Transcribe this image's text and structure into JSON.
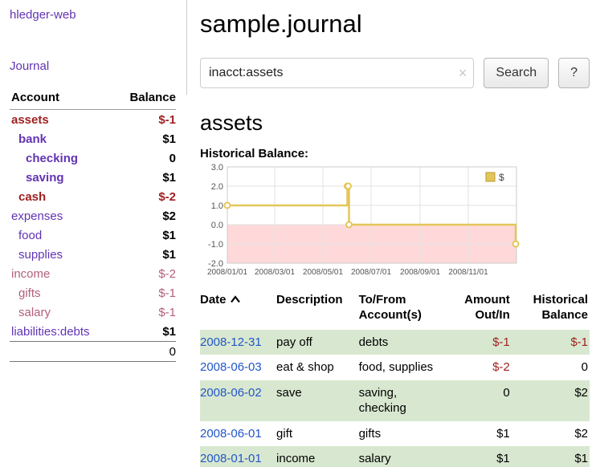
{
  "colors": {
    "link_purple": "#6233b4",
    "date_blue": "#2356c8",
    "negative_dark": "#9e1f1f",
    "negative_soft": "#b2607e",
    "row_highlight_green": "#d8e8d0",
    "chart_line_gold": "#e3c65a",
    "chart_negative_region": "#ffd9d9"
  },
  "sidebar": {
    "app_title": "hledger-web",
    "journal_link": "Journal",
    "accounts": {
      "header_account": "Account",
      "header_balance": "Balance",
      "rows": [
        {
          "account": "assets",
          "balance": "$-1",
          "depth": 1,
          "bold": true,
          "negative": "dark"
        },
        {
          "account": "bank",
          "balance": "$1",
          "depth": 2,
          "bold": true
        },
        {
          "account": "checking",
          "balance": "0",
          "depth": 3,
          "bold": true
        },
        {
          "account": "saving",
          "balance": "$1",
          "depth": 3,
          "bold": true
        },
        {
          "account": "cash",
          "balance": "$-2",
          "depth": 2,
          "bold": true,
          "negative": "dark"
        },
        {
          "account": "expenses",
          "balance": "$2",
          "depth": 1
        },
        {
          "account": "food",
          "balance": "$1",
          "depth": 2
        },
        {
          "account": "supplies",
          "balance": "$1",
          "depth": 2
        },
        {
          "account": "income",
          "balance": "$-2",
          "depth": 1,
          "negative": "soft"
        },
        {
          "account": "gifts",
          "balance": "$-1",
          "depth": 2,
          "negative": "soft"
        },
        {
          "account": "salary",
          "balance": "$-1",
          "depth": 2,
          "negative": "soft"
        },
        {
          "account": "liabilities:debts",
          "balance": "$1",
          "depth": 1
        }
      ],
      "total": "0"
    }
  },
  "header": {
    "title": "sample.journal"
  },
  "search": {
    "value": "inacct:assets",
    "clear_label": "×",
    "button_label": "Search",
    "help_label": "?",
    "sort_icon": "chevron-up"
  },
  "register": {
    "account_heading": "assets",
    "chart_title": "Historical Balance:",
    "table": {
      "headers": {
        "date": "Date",
        "description": "Description",
        "accounts": "To/From Account(s)",
        "amount": "Amount Out/In",
        "balance": "Historical Balance"
      },
      "rows": [
        {
          "date": "2008-12-31",
          "description": "pay off",
          "accounts": "debts",
          "amount": "$-1",
          "amount_negative": true,
          "balance": "$-1",
          "balance_negative": true,
          "highlight": true
        },
        {
          "date": "2008-06-03",
          "description": "eat & shop",
          "accounts": "food, supplies",
          "amount": "$-2",
          "amount_negative": true,
          "balance": "0"
        },
        {
          "date": "2008-06-02",
          "description": "save",
          "accounts": "saving, checking",
          "amount": "0",
          "balance": "$2",
          "highlight": true
        },
        {
          "date": "2008-06-01",
          "description": "gift",
          "accounts": "gifts",
          "amount": "$1",
          "balance": "$2"
        },
        {
          "date": "2008-01-01",
          "description": "income",
          "accounts": "salary",
          "amount": "$1",
          "balance": "$1",
          "highlight": true
        }
      ]
    }
  },
  "chart_data": {
    "type": "line",
    "step": true,
    "title": "Historical Balance:",
    "series": [
      {
        "name": "$",
        "color": "#e3c65a",
        "points": [
          {
            "date": "2008-01-01",
            "value": 1
          },
          {
            "date": "2008-06-01",
            "value": 2
          },
          {
            "date": "2008-06-02",
            "value": 2
          },
          {
            "date": "2008-06-03",
            "value": 0
          },
          {
            "date": "2008-12-31",
            "value": -1
          }
        ]
      }
    ],
    "x_ticks": [
      "2008/01/01",
      "2008/03/01",
      "2008/05/01",
      "2008/07/01",
      "2008/09/01",
      "2008/11/01"
    ],
    "y_ticks": [
      3.0,
      2.0,
      1.0,
      0.0,
      -1.0,
      -2.0
    ],
    "ylim": [
      -2,
      3
    ],
    "xlim": [
      "2008-01-01",
      "2009-01-01"
    ],
    "grid": true,
    "negative_region_color": "#ffd9d9",
    "legend": {
      "label": "$",
      "position": "top-right"
    }
  }
}
